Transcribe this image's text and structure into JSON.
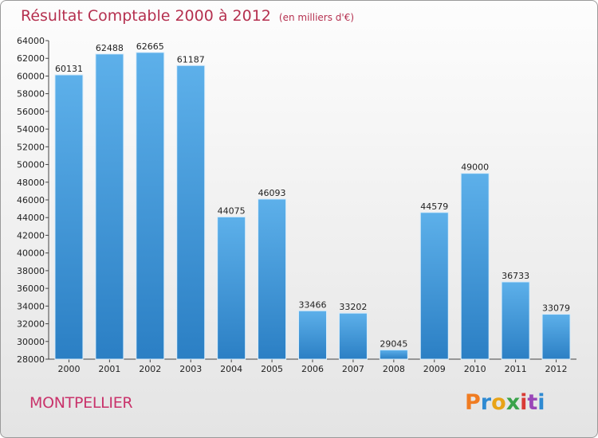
{
  "header": {
    "title": "Résultat Comptable 2000 à 2012",
    "subtitle": "(en milliers d'€)"
  },
  "footer": {
    "city": "MONTPELLIER",
    "logo": "Proxiti"
  },
  "colors": {
    "title": "#b5304f",
    "city": "#c9336b",
    "bar_top": "#5db0ea",
    "bar_bottom": "#2b7fc4",
    "logo": [
      "#f07c22",
      "#2f8ad2",
      "#e8a317",
      "#3aa34a",
      "#d93b35",
      "#9a47b8",
      "#2f8ad2"
    ]
  },
  "chart_data": {
    "type": "bar",
    "categories": [
      "2000",
      "2001",
      "2002",
      "2003",
      "2004",
      "2005",
      "2006",
      "2007",
      "2008",
      "2009",
      "2010",
      "2011",
      "2012"
    ],
    "values": [
      60131,
      62488,
      62665,
      61187,
      44075,
      46093,
      33466,
      33202,
      29045,
      44579,
      49000,
      36733,
      33079
    ],
    "ylim": [
      28000,
      64000
    ],
    "ytick_step": 2000,
    "title": "Résultat Comptable 2000 à 2012",
    "xlabel": "",
    "ylabel": "",
    "grid": false,
    "data_labels": true
  }
}
